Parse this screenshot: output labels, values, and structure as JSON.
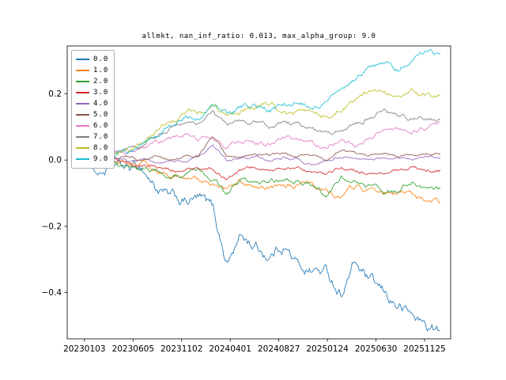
{
  "figure": {
    "background": "#ffffff"
  },
  "chart_data": {
    "type": "line",
    "title": "allmkt, nan_inf_ratio: 0.013, max_alpha_group: 9.0",
    "xlabel": "",
    "ylabel": "",
    "grid": false,
    "legend_position": "upper left",
    "x_tick_labels": [
      "20230103",
      "20230605",
      "20231102",
      "20240401",
      "20240827",
      "20250124",
      "20250630",
      "20251125"
    ],
    "y_ticks": [
      {
        "value": 0.2,
        "label": "0.2"
      },
      {
        "value": 0.0,
        "label": "0.0"
      },
      {
        "value": -0.2,
        "label": "−0.2"
      },
      {
        "value": -0.4,
        "label": "−0.4"
      }
    ],
    "ylim": [
      -0.54,
      0.345
    ],
    "x": [
      0,
      0.04,
      0.08,
      0.12,
      0.16,
      0.2,
      0.24,
      0.28,
      0.32,
      0.36,
      0.4,
      0.44,
      0.48,
      0.52,
      0.56,
      0.6,
      0.64,
      0.68,
      0.72,
      0.76,
      0.8,
      0.84,
      0.88,
      0.92,
      0.96,
      1
    ],
    "series": [
      {
        "name": "0.0",
        "color": "#1f77b4",
        "values": [
          0,
          -0.04,
          -0.02,
          -0.03,
          -0.02,
          -0.08,
          -0.12,
          -0.13,
          -0.12,
          -0.15,
          -0.31,
          -0.23,
          -0.26,
          -0.29,
          -0.25,
          -0.32,
          -0.33,
          -0.34,
          -0.4,
          -0.31,
          -0.37,
          -0.41,
          -0.44,
          -0.47,
          -0.5,
          -0.52
        ]
      },
      {
        "name": "1.0",
        "color": "#ff7f0e",
        "values": [
          0,
          -0.01,
          0.0,
          -0.01,
          -0.01,
          -0.03,
          -0.05,
          -0.06,
          -0.06,
          -0.07,
          -0.09,
          -0.07,
          -0.08,
          -0.08,
          -0.07,
          -0.08,
          -0.07,
          -0.09,
          -0.11,
          -0.08,
          -0.09,
          -0.1,
          -0.1,
          -0.11,
          -0.13,
          -0.135
        ]
      },
      {
        "name": "2.0",
        "color": "#2ca02c",
        "values": [
          0,
          -0.01,
          -0.02,
          -0.02,
          -0.02,
          -0.03,
          -0.04,
          -0.05,
          -0.04,
          -0.05,
          -0.1,
          -0.06,
          -0.07,
          -0.07,
          -0.06,
          -0.06,
          -0.08,
          -0.11,
          -0.05,
          -0.07,
          -0.08,
          -0.1,
          -0.09,
          -0.07,
          -0.08,
          -0.085
        ]
      },
      {
        "name": "3.0",
        "color": "#d62728",
        "values": [
          0,
          -0.01,
          0,
          -0.01,
          -0.02,
          -0.02,
          -0.03,
          -0.03,
          -0.02,
          -0.03,
          -0.06,
          -0.03,
          -0.02,
          -0.03,
          -0.02,
          -0.03,
          -0.04,
          -0.04,
          -0.02,
          -0.03,
          -0.04,
          -0.04,
          -0.03,
          -0.02,
          -0.03,
          -0.03
        ]
      },
      {
        "name": "4.0",
        "color": "#9467bd",
        "values": [
          0,
          0,
          0.01,
          0,
          0,
          -0.01,
          0,
          0,
          0.01,
          0.05,
          0,
          0,
          0.01,
          0,
          0.01,
          0,
          -0.01,
          0,
          0.01,
          0.01,
          0,
          0.01,
          0.01,
          0,
          0.01,
          0.01
        ]
      },
      {
        "name": "5.0",
        "color": "#8c564b",
        "values": [
          0,
          0,
          0.01,
          0.01,
          0,
          0.01,
          0,
          0.01,
          0.01,
          0.07,
          0.01,
          0.01,
          0.02,
          0.01,
          0.02,
          0.01,
          0.01,
          0,
          0.03,
          0.02,
          0.01,
          0.02,
          0.01,
          0.02,
          0.02,
          0.025
        ]
      },
      {
        "name": "6.0",
        "color": "#e377c2",
        "values": [
          0,
          0,
          0.02,
          0.02,
          0.03,
          0.05,
          0.06,
          0.08,
          0.06,
          0.07,
          0.04,
          0.06,
          0.06,
          0.05,
          0.07,
          0.06,
          0.05,
          0.04,
          0.06,
          0.05,
          0.07,
          0.09,
          0.1,
          0.09,
          0.1,
          0.11
        ]
      },
      {
        "name": "7.0",
        "color": "#7f7f7f",
        "values": [
          0,
          0,
          0.02,
          0.03,
          0.04,
          0.07,
          0.1,
          0.12,
          0.11,
          0.14,
          0.1,
          0.12,
          0.12,
          0.1,
          0.11,
          0.11,
          0.09,
          0.08,
          0.1,
          0.11,
          0.13,
          0.15,
          0.13,
          0.12,
          0.13,
          0.13
        ]
      },
      {
        "name": "8.0",
        "color": "#bcbd22",
        "values": [
          0,
          0,
          0.02,
          0.03,
          0.05,
          0.08,
          0.12,
          0.15,
          0.14,
          0.17,
          0.13,
          0.15,
          0.16,
          0.17,
          0.15,
          0.14,
          0.13,
          0.13,
          0.16,
          0.18,
          0.21,
          0.2,
          0.18,
          0.21,
          0.2,
          0.2
        ]
      },
      {
        "name": "9.0",
        "color": "#17becf",
        "values": [
          0,
          0,
          0.01,
          0.02,
          0.04,
          0.06,
          0.1,
          0.13,
          0.14,
          0.16,
          0.14,
          0.16,
          0.17,
          0.15,
          0.17,
          0.18,
          0.16,
          0.17,
          0.21,
          0.25,
          0.28,
          0.3,
          0.28,
          0.31,
          0.33,
          0.32
        ]
      }
    ]
  }
}
